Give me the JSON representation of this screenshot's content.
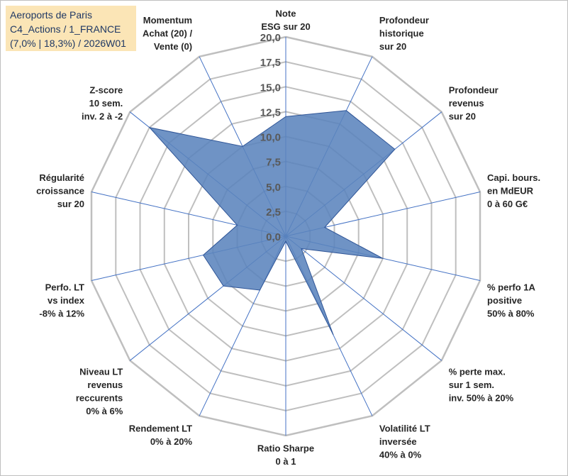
{
  "title_lines": [
    "Aeroports de Paris",
    "C4_Actions / 1_FRANCE",
    "(7,0% | 18,3%) / 2026W01"
  ],
  "colors": {
    "grid": "#bfbfbf",
    "spoke": "#4472c4",
    "fill": "#5b84bd",
    "fill_stroke": "#2f5597",
    "title_bg": "#fbe5b6",
    "title_text": "#1f3864"
  },
  "chart_data": {
    "type": "radar",
    "rlim": [
      0,
      20
    ],
    "tick_step": 2.5,
    "grid": true,
    "tick_labels": [
      "0,0",
      "2,5",
      "5,0",
      "7,5",
      "10,0",
      "12,5",
      "15,0",
      "17,5",
      "20,0"
    ],
    "axes": [
      [
        "Note",
        "ESG sur 20"
      ],
      [
        "Profondeur",
        "historique",
        "sur 20"
      ],
      [
        "Profondeur",
        "revenus",
        "sur 20"
      ],
      [
        "Capi. bours.",
        "en MdEUR",
        "0 à 60 G€"
      ],
      [
        "% perfo 1A",
        "positive",
        "50% à 80%"
      ],
      [
        "% perte max.",
        "sur 1 sem.",
        "inv. 50% à 20%"
      ],
      [
        "Volatilité LT",
        "inversée",
        "40% à 0%"
      ],
      [
        "Ratio Sharpe",
        "0 à 1"
      ],
      [
        "Rendement LT",
        "0% à 20%"
      ],
      [
        "Niveau LT",
        "revenus",
        "reccurents",
        "0% à 6%"
      ],
      [
        "Perfo. LT",
        "vs index",
        "-8% à 12%"
      ],
      [
        "Régularité",
        "croissance",
        "sur 20"
      ],
      [
        "Z-score",
        "10 sem.",
        "inv. 2 à -2"
      ],
      [
        "Momentum",
        "Achat (20) /",
        "Vente (0)"
      ]
    ],
    "series": [
      {
        "values": [
          12,
          14,
          14,
          4,
          10,
          2,
          11,
          0.5,
          6,
          8,
          8.5,
          5,
          17.5,
          10
        ]
      }
    ]
  }
}
